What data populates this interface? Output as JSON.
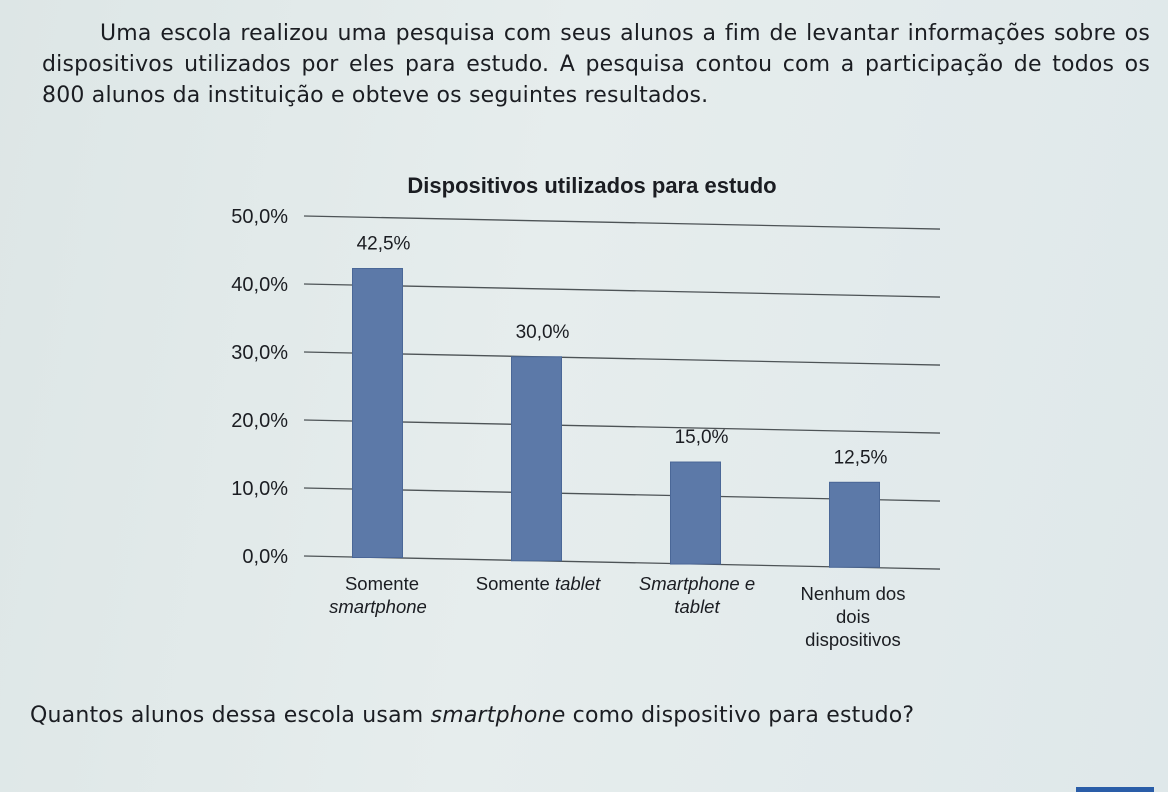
{
  "intro_text": "Uma escola realizou uma pesquisa com seus alunos a fim de levantar informações sobre os dispositivos utilizados por eles para estudo. A pesquisa contou com a participação de todos os 800 alunos da instituição e obteve os seguintes resultados.",
  "question": {
    "before": "Quantos alunos dessa escola usam ",
    "emphasis": "smartphone",
    "after": " como dispositivo para estudo?"
  },
  "chart_data": {
    "type": "bar",
    "title": "Dispositivos utilizados para estudo",
    "categories": [
      [
        {
          "text": "Somente",
          "italic": false
        },
        {
          "text": "smartphone",
          "italic": true
        }
      ],
      [
        {
          "text": "Somente ",
          "italic": false,
          "inline_next": true
        },
        {
          "text": "tablet",
          "italic": true
        }
      ],
      [
        {
          "text": "Smartphone e",
          "italic": true
        },
        {
          "text": "tablet",
          "italic": true
        }
      ],
      [
        {
          "text": "Nenhum dos",
          "italic": false
        },
        {
          "text": "dois",
          "italic": false
        },
        {
          "text": "dispositivos",
          "italic": false
        }
      ]
    ],
    "values": [
      42.5,
      30.0,
      15.0,
      12.5
    ],
    "data_labels": [
      "42,5%",
      "30,0%",
      "15,0%",
      "12,5%"
    ],
    "yticks": [
      "0,0%",
      "10,0%",
      "20,0%",
      "30,0%",
      "40,0%",
      "50,0%"
    ],
    "ylim": [
      0,
      50
    ],
    "grid": true,
    "colors": {
      "bar": "#5c79a8",
      "bar_edge": "#4a6797",
      "grid": "#4d5356"
    }
  }
}
